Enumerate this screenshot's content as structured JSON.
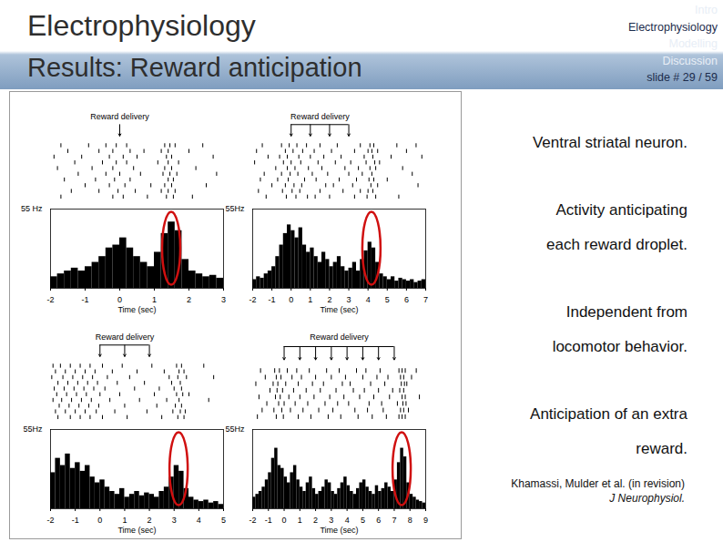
{
  "slide": {
    "title": [
      "Electrophysiology",
      "Results: Reward anticipation"
    ],
    "nav": [
      "Intro",
      "Electrophysiology",
      "Modelling",
      "Discussion",
      "slide # 29 / 59"
    ],
    "nav_current": 1,
    "notes": [
      [
        "Ventral striatal neuron."
      ],
      [
        "Activity anticipating",
        "each reward droplet."
      ],
      [
        "Independent from",
        "locomotor behavior."
      ],
      [
        "Anticipation of an extra",
        "reward."
      ]
    ],
    "citation": [
      "Khamassi, Mulder et al. (in revision)",
      "J Neurophysiol."
    ]
  },
  "chart_data": [
    {
      "type": "histogram",
      "title": "Reward delivery",
      "x_label": "Time (sec)",
      "color": "#000000",
      "xlim": [
        -2,
        3
      ],
      "xticks": [
        -2,
        -1,
        0,
        1,
        2,
        3
      ],
      "ylim": [
        0,
        55
      ],
      "yticks": [
        {
          "value": 55,
          "label": "55 Hz"
        }
      ],
      "bins": [
        -2,
        -1.8,
        -1.6,
        -1.4,
        -1.2,
        -1,
        -0.8,
        -0.6,
        -0.4,
        -0.2,
        0,
        0.2,
        0.4,
        0.6,
        0.8,
        1,
        1.2,
        1.4,
        1.6,
        1.8,
        2,
        2.2,
        2.4,
        2.6,
        2.8,
        3
      ],
      "values": [
        8,
        10,
        12,
        14,
        12,
        15,
        18,
        22,
        28,
        30,
        35,
        28,
        22,
        18,
        15,
        25,
        38,
        46,
        40,
        20,
        12,
        10,
        8,
        9,
        7
      ],
      "reward_times": [
        0
      ],
      "highlight": 1.5,
      "raster": [
        [
          -1.7,
          -0.9,
          -0.4,
          -0.1,
          0.2,
          1.3,
          1.45,
          1.6,
          2.4
        ],
        [
          -1.5,
          -0.6,
          -0.2,
          0.3,
          0.7,
          1.2,
          1.4,
          2.0
        ],
        [
          -1.9,
          -1.1,
          -0.3,
          0.1,
          0.5,
          1.35,
          1.5,
          2.7
        ],
        [
          -1.3,
          -0.5,
          -0.1,
          0.2,
          1.1,
          1.4,
          1.7
        ],
        [
          -1.8,
          -0.8,
          -0.2,
          0.4,
          1.3,
          1.5,
          2.2
        ],
        [
          -1.2,
          -0.4,
          0.0,
          0.6,
          1.25,
          1.45,
          1.65,
          2.8
        ],
        [
          -1.6,
          -0.7,
          -0.15,
          0.3,
          1.4,
          1.55
        ],
        [
          -1.0,
          -0.3,
          0.15,
          0.9,
          1.3,
          1.5,
          2.5
        ],
        [
          -1.4,
          -0.6,
          -0.05,
          0.45,
          1.2,
          1.4,
          1.6
        ],
        [
          -1.7,
          -0.2,
          0.1,
          0.8,
          1.35,
          1.55,
          2.1
        ]
      ]
    },
    {
      "type": "histogram",
      "title": "Reward delivery",
      "x_label": "Time (sec)",
      "color": "#000000",
      "xlim": [
        -2,
        7
      ],
      "xticks": [
        -2,
        -1,
        0,
        1,
        2,
        3,
        4,
        5,
        6,
        7
      ],
      "ylim": [
        0,
        55
      ],
      "yticks": [
        {
          "value": 55,
          "label": "55Hz"
        }
      ],
      "bins": [
        -2,
        -1.8,
        -1.6,
        -1.4,
        -1.2,
        -1,
        -0.8,
        -0.6,
        -0.4,
        -0.2,
        0,
        0.2,
        0.4,
        0.6,
        0.8,
        1,
        1.2,
        1.4,
        1.6,
        1.8,
        2,
        2.2,
        2.4,
        2.6,
        2.8,
        3,
        3.2,
        3.4,
        3.6,
        3.8,
        4,
        4.2,
        4.4,
        4.6,
        4.8,
        5,
        5.2,
        5.4,
        5.6,
        5.8,
        6,
        6.2,
        6.4,
        6.6,
        6.8,
        7
      ],
      "values": [
        6,
        8,
        7,
        10,
        12,
        15,
        22,
        30,
        38,
        44,
        40,
        35,
        42,
        30,
        25,
        28,
        22,
        18,
        25,
        20,
        15,
        18,
        22,
        15,
        12,
        14,
        18,
        12,
        20,
        26,
        32,
        28,
        18,
        10,
        8,
        6,
        8,
        5,
        7,
        6,
        5,
        6,
        4,
        5,
        6
      ],
      "reward_times": [
        0,
        1,
        2,
        3
      ],
      "highlight": 4.2,
      "raster": [
        [
          -1.5,
          -0.5,
          -0.1,
          0.3,
          0.8,
          1.5,
          2.4,
          3.6,
          4.1,
          4.3,
          5.5,
          6.5
        ],
        [
          -1.8,
          -0.3,
          0.1,
          0.6,
          1.2,
          2.1,
          3.3,
          4.0,
          4.2,
          4.5,
          6.0
        ],
        [
          -1.2,
          -0.6,
          -0.2,
          0.4,
          1.0,
          1.7,
          2.6,
          3.8,
          4.25,
          5.2,
          6.8
        ],
        [
          -1.9,
          -0.4,
          0.0,
          0.5,
          1.4,
          2.3,
          3.1,
          3.9,
          4.35,
          4.6
        ],
        [
          -0.8,
          -0.2,
          0.2,
          0.9,
          1.6,
          2.8,
          3.5,
          4.1,
          4.4,
          5.8
        ],
        [
          -1.4,
          -0.5,
          -0.05,
          0.35,
          1.1,
          1.9,
          3.0,
          3.7,
          4.2,
          6.3
        ],
        [
          -1.6,
          -0.7,
          -0.15,
          0.7,
          1.3,
          2.5,
          3.4,
          4.05,
          4.3,
          5.0
        ],
        [
          -1.0,
          -0.3,
          0.15,
          0.55,
          1.8,
          2.2,
          3.2,
          4.15,
          4.5,
          6.6
        ],
        [
          -1.7,
          -0.45,
          0.05,
          0.45,
          1.5,
          2.7,
          3.6,
          4.0,
          4.25
        ],
        [
          -1.3,
          -0.25,
          0.25,
          0.85,
          1.25,
          2.0,
          3.3,
          3.95,
          4.4,
          5.6
        ]
      ]
    },
    {
      "type": "histogram",
      "title": "Reward delivery",
      "x_label": "Time (sec)",
      "color": "#000000",
      "xlim": [
        -2,
        5
      ],
      "xticks": [
        -2,
        -1,
        0,
        1,
        2,
        3,
        4,
        5
      ],
      "ylim": [
        0,
        55
      ],
      "yticks": [
        {
          "value": 55,
          "label": "55Hz"
        }
      ],
      "bins": [
        -2,
        -1.8,
        -1.6,
        -1.4,
        -1.2,
        -1,
        -0.8,
        -0.6,
        -0.4,
        -0.2,
        0,
        0.2,
        0.4,
        0.6,
        0.8,
        1,
        1.2,
        1.4,
        1.6,
        1.8,
        2,
        2.2,
        2.4,
        2.6,
        2.8,
        3,
        3.2,
        3.4,
        3.6,
        3.8,
        4,
        4.2,
        4.4,
        4.6,
        4.8,
        5
      ],
      "values": [
        25,
        35,
        30,
        38,
        28,
        32,
        26,
        30,
        22,
        18,
        20,
        15,
        12,
        10,
        14,
        8,
        10,
        12,
        9,
        11,
        10,
        8,
        12,
        15,
        22,
        30,
        26,
        14,
        8,
        6,
        5,
        6,
        4,
        5,
        3
      ],
      "reward_times": [
        0,
        1,
        2
      ],
      "highlight": 3.2,
      "raster": [
        [
          -1.9,
          -1.6,
          -1.2,
          -0.8,
          -0.4,
          0.1,
          0.9,
          2.1,
          3.1,
          3.3,
          4.2
        ],
        [
          -1.8,
          -1.4,
          -1.0,
          -0.6,
          -0.2,
          0.5,
          1.5,
          2.6,
          3.2,
          3.4
        ],
        [
          -1.95,
          -1.5,
          -1.1,
          -0.7,
          -0.3,
          0.3,
          1.2,
          2.8,
          3.15,
          3.5,
          4.6
        ],
        [
          -1.7,
          -1.3,
          -0.9,
          -0.5,
          -0.1,
          0.7,
          1.8,
          2.9,
          3.25
        ],
        [
          -1.85,
          -1.45,
          -1.05,
          -0.65,
          -0.25,
          0.2,
          1.4,
          2.4,
          3.0,
          3.3
        ],
        [
          -1.75,
          -1.35,
          -0.95,
          -0.55,
          0.0,
          0.8,
          2.2,
          3.1,
          3.35,
          3.6
        ],
        [
          -1.9,
          -1.55,
          -1.15,
          -0.75,
          -0.35,
          0.4,
          1.6,
          2.7,
          3.2,
          4.4
        ],
        [
          -1.65,
          -1.25,
          -0.85,
          -0.45,
          -0.05,
          1.0,
          2.3,
          3.05,
          3.3
        ],
        [
          -1.8,
          -1.4,
          -1.0,
          -0.6,
          -0.15,
          0.6,
          1.9,
          2.95,
          3.25,
          3.45
        ],
        [
          -1.7,
          -1.2,
          -0.8,
          -0.4,
          0.1,
          1.1,
          2.5,
          3.15,
          3.4
        ]
      ]
    },
    {
      "type": "histogram",
      "title": "Reward delivery",
      "x_label": "Time (sec)",
      "color": "#000000",
      "xlim": [
        -2,
        9
      ],
      "xticks": [
        -2,
        -1,
        0,
        1,
        2,
        3,
        4,
        5,
        6,
        7,
        8,
        9
      ],
      "ylim": [
        0,
        55
      ],
      "yticks": [
        {
          "value": 55,
          "label": "55Hz"
        }
      ],
      "bins": [
        -2,
        -1.8,
        -1.6,
        -1.4,
        -1.2,
        -1,
        -0.8,
        -0.6,
        -0.4,
        -0.2,
        0,
        0.2,
        0.4,
        0.6,
        0.8,
        1,
        1.2,
        1.4,
        1.6,
        1.8,
        2,
        2.2,
        2.4,
        2.6,
        2.8,
        3,
        3.2,
        3.4,
        3.6,
        3.8,
        4,
        4.2,
        4.4,
        4.6,
        4.8,
        5,
        5.2,
        5.4,
        5.6,
        5.8,
        6,
        6.2,
        6.4,
        6.6,
        6.8,
        7,
        7.2,
        7.4,
        7.6,
        7.8,
        8,
        8.2,
        8.4,
        8.6,
        8.8,
        9
      ],
      "values": [
        8,
        10,
        12,
        15,
        20,
        25,
        35,
        42,
        30,
        28,
        22,
        18,
        25,
        30,
        20,
        15,
        12,
        18,
        22,
        14,
        10,
        12,
        15,
        20,
        18,
        12,
        10,
        14,
        18,
        22,
        16,
        12,
        10,
        14,
        18,
        20,
        15,
        12,
        10,
        16,
        12,
        14,
        18,
        15,
        12,
        20,
        32,
        42,
        36,
        18,
        10,
        8,
        6,
        5,
        4
      ],
      "reward_times": [
        0,
        1,
        2,
        3,
        4,
        5,
        6,
        7
      ],
      "highlight": 7.5,
      "raster": [
        [
          -1.5,
          -0.6,
          -0.3,
          0.2,
          0.8,
          1.6,
          2.7,
          3.5,
          4.6,
          5.2,
          6.1,
          7.3,
          7.5,
          7.7,
          8.4
        ],
        [
          -1.2,
          -0.5,
          -0.2,
          0.5,
          1.1,
          2.0,
          3.0,
          3.9,
          5.0,
          5.9,
          6.6,
          7.4,
          7.6,
          8.1
        ],
        [
          -1.8,
          -0.7,
          -0.4,
          0.1,
          0.9,
          1.8,
          2.5,
          3.7,
          4.2,
          5.5,
          6.4,
          7.45,
          7.65,
          7.8
        ],
        [
          -0.9,
          -0.45,
          -0.1,
          0.6,
          1.4,
          2.3,
          3.3,
          4.4,
          5.1,
          6.0,
          6.9,
          7.35,
          7.6
        ],
        [
          -1.6,
          -0.55,
          -0.25,
          0.3,
          1.0,
          1.9,
          2.9,
          3.8,
          4.8,
          5.7,
          6.7,
          7.5,
          7.7,
          8.6
        ],
        [
          -1.1,
          -0.35,
          0.0,
          0.7,
          1.5,
          2.6,
          3.4,
          4.1,
          5.4,
          6.2,
          7.2,
          7.55,
          7.75
        ],
        [
          -1.4,
          -0.65,
          -0.15,
          0.4,
          1.2,
          2.2,
          3.1,
          4.5,
          5.3,
          6.3,
          7.4,
          7.6,
          7.9
        ],
        [
          -1.7,
          -0.5,
          -0.05,
          0.9,
          1.7,
          2.8,
          3.6,
          4.7,
          5.6,
          6.5,
          7.3,
          7.5,
          7.7
        ]
      ]
    }
  ]
}
